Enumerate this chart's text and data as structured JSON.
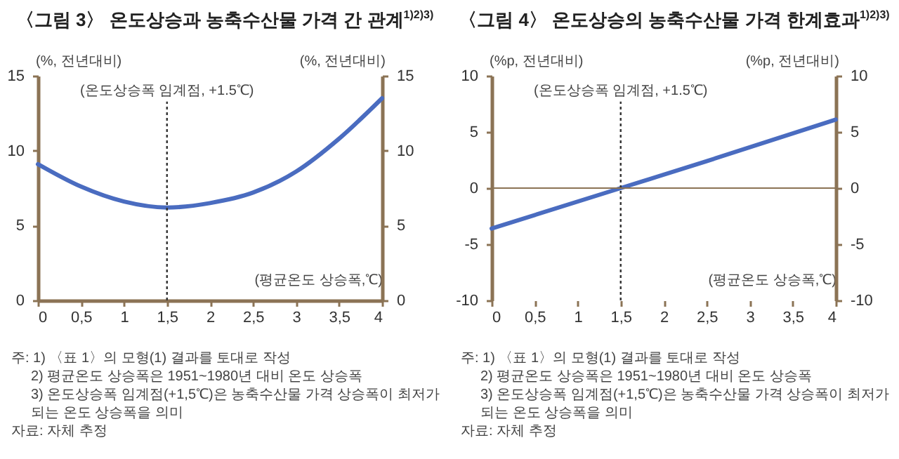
{
  "chart_data": [
    {
      "type": "line",
      "title": "〈그림 3〉 온도상승과 농축수산물 가격 간 관계$^{1)2)3)}$",
      "xlabel": "(평균온도 상승폭,℃)",
      "ylabel": "(%, 전년대비)",
      "y2label": "(%, 전년대비)",
      "x": [
        0,
        0.5,
        1,
        1.5,
        2,
        2.5,
        3,
        3.5,
        4
      ],
      "series": [
        {
          "color": "#4a6cc0",
          "values": [
            9.1,
            7.6,
            6.6,
            6.2,
            6.5,
            7.2,
            8.6,
            10.8,
            13.5
          ]
        }
      ],
      "xlim": [
        0,
        4
      ],
      "xticks": [
        0,
        {
          "value": 0.5,
          "label": "0,5"
        },
        1,
        {
          "value": 1.5,
          "label": "1,5"
        },
        2,
        {
          "value": 2.5,
          "label": "2,5"
        },
        3,
        {
          "value": 3.5,
          "label": "3,5"
        },
        4
      ],
      "ylim": [
        0,
        15
      ],
      "yticks": [
        0,
        5,
        10,
        15
      ],
      "y2lim": [
        0,
        15
      ],
      "y2ticks": [
        0,
        5,
        10,
        15
      ],
      "ref_lines": [
        {
          "axis": "x",
          "value": 1.5,
          "label": "(온도상승폭 임계점, +1.5℃)",
          "line_style": "dotted",
          "color": "#333333"
        }
      ],
      "annotations": [
        "주: 1) 〈표 1〉의 모형(1) 결과를 토대로 작성",
        "2) 평균온도 상승폭은 1951~1980년 대비 온도 상승폭",
        "3) 온도상승폭 임계점(+1,5℃)은 농축수산물 가격 상승폭이 최저가 되는 온도 상승폭을 의미",
        "자료: 자체 추정"
      ]
    },
    {
      "type": "line",
      "title": "〈그림 4〉 온도상승의 농축수산물 가격 한계효과$^{1)2)3)}$",
      "xlabel": "(평균온도 상승폭,℃)",
      "ylabel": "(%p, 전년대비)",
      "y2label": "(%p, 전년대비)",
      "x": [
        0,
        1.5,
        2.5,
        4
      ],
      "series": [
        {
          "color": "#4a6cc0",
          "values": [
            -3.6,
            0,
            2.4,
            6.1
          ]
        }
      ],
      "xlim": [
        0,
        4
      ],
      "xticks": [
        0,
        {
          "value": 0.5,
          "label": "0,5"
        },
        1,
        {
          "value": 1.5,
          "label": "1,5"
        },
        2,
        {
          "value": 2.5,
          "label": "2,5"
        },
        3,
        {
          "value": 3.5,
          "label": "3,5"
        },
        4
      ],
      "ylim": [
        -10,
        10
      ],
      "yticks": [
        -10,
        -5,
        0,
        5,
        10
      ],
      "y2lim": [
        -10,
        10
      ],
      "y2ticks": [
        -10,
        -5,
        0,
        5,
        10
      ],
      "ref_lines": [
        {
          "axis": "x",
          "value": 1.5,
          "label": "(온도상승폭 임계점, +1.5℃)",
          "line_style": "dotted",
          "color": "#333333"
        },
        {
          "axis": "y",
          "value": 0,
          "color": "#8b7355"
        }
      ],
      "annotations": [
        "주: 1) 〈표 1〉의 모형(1) 결과를 토대로 작성",
        "2) 평균온도 상승폭은 1951~1980년 대비 온도 상승폭",
        "3) 온도상승폭 임계점(+1,5℃)은 농축수산물 가격 상승폭이 최저가 되는 온도 상승폭을 의미",
        "자료: 자체 추정"
      ]
    }
  ]
}
